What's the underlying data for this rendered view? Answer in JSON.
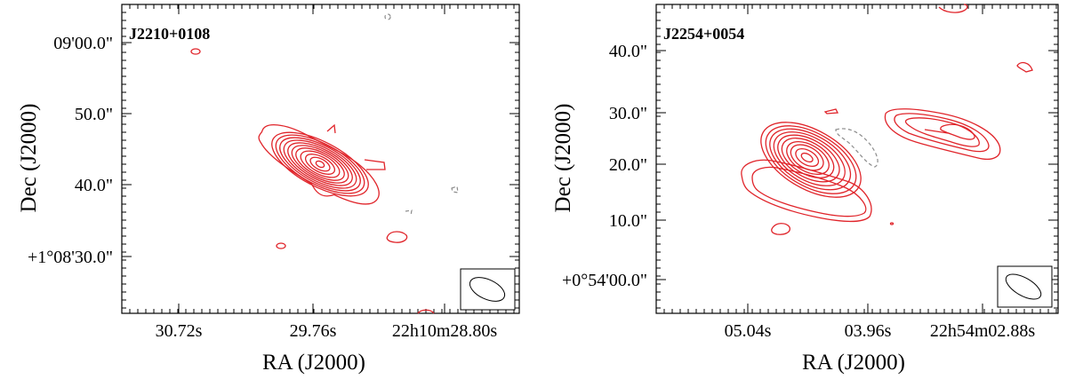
{
  "panels": [
    {
      "source": "J2210+0108",
      "xlabel": "RA (J2000)",
      "ylabel": "Dec (J2000)",
      "xticks": [
        "30.72s",
        "29.76s",
        "22h10m28.80s"
      ],
      "yticks": [
        "09'00.0\"",
        "50.0\"",
        "40.0\"",
        "+1°08'30.0\""
      ]
    },
    {
      "source": "J2254+0054",
      "xlabel": "RA (J2000)",
      "ylabel": "Dec (J2000)",
      "xticks": [
        "05.04s",
        "03.96s",
        "22h54m02.88s"
      ],
      "yticks": [
        "40.0\"",
        "30.0\"",
        "20.0\"",
        "10.0\"",
        "+0°54'00.0\""
      ]
    }
  ],
  "colors": {
    "positive_contour": "#e0242a",
    "negative_contour": "#8c8c8c"
  }
}
